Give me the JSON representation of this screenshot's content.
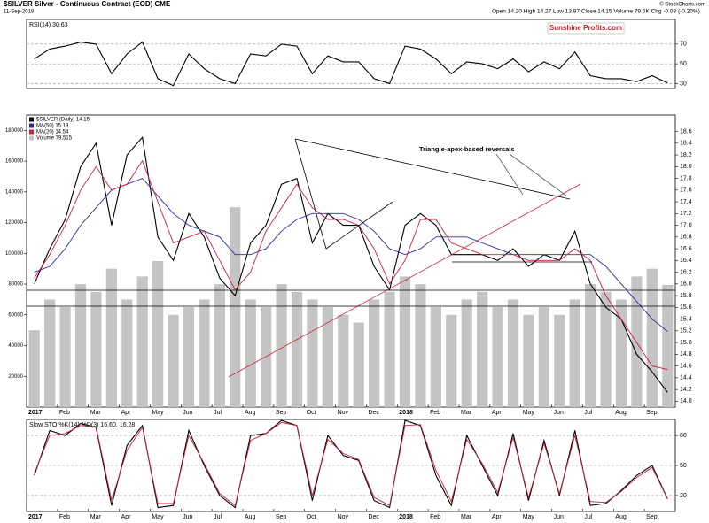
{
  "header": {
    "symbol": "$SILVER Silver - Continuous Contract (EOD) CME",
    "date": "11-Sep-2018",
    "quote": "Open 14.20  High 14.27  Low 13.97  Close 14.15  Volume 79.5K  Chg -0.03 (-0.20%)",
    "credit": "© StockCharts.com",
    "watermark": "Sunshine Profits.com"
  },
  "chart_data": [
    {
      "type": "line",
      "title": "RSI(14) 30.63",
      "ylim": [
        25,
        95
      ],
      "yticks": [
        30,
        50,
        70
      ],
      "grid": true,
      "series": [
        {
          "color": "#000000",
          "values": [
            55,
            65,
            68,
            72,
            70,
            40,
            60,
            72,
            35,
            28,
            60,
            45,
            35,
            30,
            60,
            58,
            70,
            68,
            40,
            58,
            52,
            52,
            35,
            30,
            68,
            65,
            55,
            40,
            52,
            50,
            45,
            55,
            42,
            52,
            45,
            62,
            38,
            35,
            35,
            32,
            38,
            30.63
          ]
        }
      ]
    },
    {
      "type": "line",
      "annotation": "Triangle-apex-based reversals",
      "categories": [
        "2017",
        null,
        "Feb",
        null,
        "Mar",
        null,
        "Apr",
        null,
        "May",
        null,
        "Jun",
        null,
        "Jul",
        null,
        "Aug",
        null,
        "Sep",
        null,
        "Oct",
        null,
        "Nov",
        null,
        "Dec",
        null,
        "2018",
        null,
        "Feb",
        null,
        "Mar",
        null,
        "Apr",
        null,
        "May",
        null,
        "Jun",
        null,
        "Jul",
        null,
        "Aug",
        null,
        "Sep",
        null
      ],
      "ylim": [
        13.9,
        18.88
      ],
      "yticks": [
        {
          "value": 14,
          "label": "14.0"
        },
        14.2,
        14.4,
        14.6,
        14.8,
        {
          "value": 15,
          "label": "15.0"
        },
        15.2,
        15.4,
        15.6,
        15.8,
        {
          "value": 16,
          "label": "16.0"
        },
        16.2,
        16.4,
        16.6,
        16.8,
        {
          "value": 17,
          "label": "17.0"
        },
        17.2,
        17.4,
        17.6,
        17.8,
        {
          "value": 18,
          "label": "18.0"
        },
        18.2,
        18.4,
        18.6
      ],
      "y2lim": [
        0,
        190000
      ],
      "y2ticks": [
        20000,
        40000,
        60000,
        80000,
        100000,
        120000,
        140000,
        160000,
        180000
      ],
      "series": [
        {
          "name": "$SILVER (Daily) 14.15",
          "color": "#000000",
          "values": [
            16.0,
            16.6,
            17.1,
            18.0,
            18.4,
            17.0,
            18.2,
            18.5,
            16.8,
            16.4,
            17.2,
            16.8,
            16.1,
            15.8,
            16.7,
            17.0,
            17.7,
            17.8,
            16.7,
            17.2,
            17.0,
            17.0,
            16.3,
            15.9,
            17.0,
            17.2,
            17.0,
            16.5,
            16.5,
            16.5,
            16.4,
            16.6,
            16.3,
            16.5,
            16.4,
            16.9,
            16.0,
            15.6,
            15.4,
            14.8,
            14.5,
            14.15
          ]
        },
        {
          "name": "MA(50) 15.19",
          "color": "#2c2ca0",
          "values": [
            16.2,
            16.3,
            16.6,
            17.0,
            17.3,
            17.6,
            17.7,
            17.8,
            17.5,
            17.2,
            17.0,
            16.9,
            16.8,
            16.5,
            16.5,
            16.6,
            16.9,
            17.1,
            17.2,
            17.2,
            17.2,
            17.1,
            16.9,
            16.6,
            16.5,
            16.6,
            16.8,
            16.8,
            16.8,
            16.7,
            16.6,
            16.5,
            16.5,
            16.5,
            16.5,
            16.5,
            16.5,
            16.3,
            16.0,
            15.7,
            15.4,
            15.19
          ]
        },
        {
          "name": "MA(20) 14.54",
          "color": "#d0203a",
          "values": [
            16.1,
            16.5,
            17.0,
            17.6,
            18.0,
            17.6,
            17.7,
            18.1,
            17.4,
            16.7,
            16.8,
            16.9,
            16.4,
            15.9,
            16.2,
            16.9,
            17.3,
            17.7,
            17.3,
            17.1,
            17.1,
            17.0,
            16.6,
            16.0,
            16.4,
            17.1,
            17.1,
            16.7,
            16.6,
            16.5,
            16.5,
            16.5,
            16.4,
            16.4,
            16.4,
            16.6,
            16.4,
            15.8,
            15.4,
            15.0,
            14.6,
            14.54
          ]
        },
        {
          "name": "Volume 79,515",
          "color": "#c4c4c4",
          "axis": "y2",
          "values": [
            50000,
            70000,
            65000,
            80000,
            75000,
            90000,
            70000,
            85000,
            95000,
            60000,
            65000,
            70000,
            80000,
            130000,
            70000,
            65000,
            80000,
            75000,
            70000,
            65000,
            60000,
            55000,
            70000,
            75000,
            85000,
            80000,
            65000,
            60000,
            70000,
            75000,
            65000,
            70000,
            60000,
            65000,
            60000,
            70000,
            80000,
            75000,
            70000,
            85000,
            90000,
            79515
          ]
        }
      ]
    },
    {
      "type": "line",
      "title": "Slow STO %K(14) %D(3) 16.60, 16.28",
      "categories": [
        "2017",
        null,
        "Feb",
        null,
        "Mar",
        null,
        "Apr",
        null,
        "May",
        null,
        "Jun",
        null,
        "Jul",
        null,
        "Aug",
        null,
        "Sep",
        null,
        "Oct",
        null,
        "Nov",
        null,
        "Dec",
        null,
        "2018",
        null,
        "Feb",
        null,
        "Mar",
        null,
        "Apr",
        null,
        "May",
        null,
        "Jun",
        null,
        "Jul",
        null,
        "Aug",
        null,
        "Sep",
        null
      ],
      "ylim": [
        4,
        96
      ],
      "yticks": [
        20,
        50,
        80
      ],
      "grid": true,
      "series": [
        {
          "color": "#000000",
          "values": [
            40,
            85,
            80,
            92,
            88,
            10,
            70,
            90,
            8,
            10,
            85,
            50,
            20,
            8,
            80,
            82,
            95,
            90,
            15,
            80,
            60,
            55,
            15,
            8,
            95,
            90,
            40,
            10,
            80,
            50,
            20,
            82,
            15,
            75,
            20,
            85,
            10,
            12,
            25,
            40,
            50,
            16.6
          ]
        },
        {
          "color": "#d0203a",
          "values": [
            42,
            80,
            82,
            90,
            89,
            15,
            65,
            88,
            12,
            12,
            80,
            52,
            22,
            10,
            75,
            82,
            93,
            90,
            20,
            76,
            62,
            56,
            18,
            10,
            90,
            91,
            45,
            14,
            76,
            52,
            23,
            78,
            18,
            72,
            22,
            80,
            14,
            13,
            24,
            38,
            48,
            16.28
          ]
        }
      ]
    }
  ]
}
